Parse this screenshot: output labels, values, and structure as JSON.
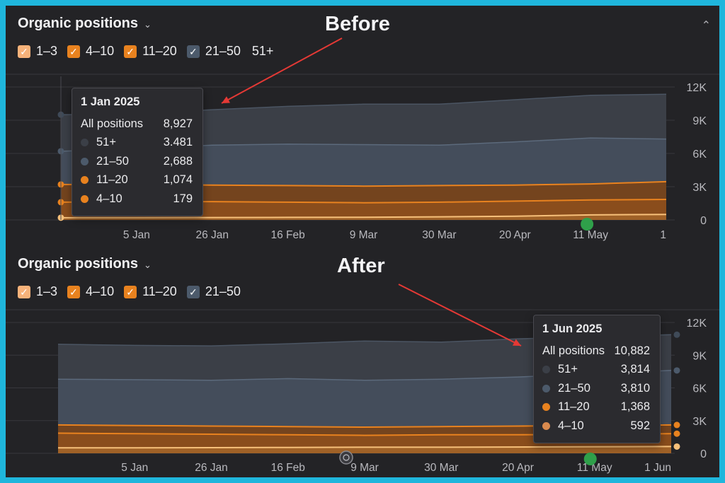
{
  "colors": {
    "pos_1_3": "#f7b27a",
    "pos_4_10": "#e8821f",
    "pos_11_20": "#e8821f",
    "pos_21_50": "#4c5a6b",
    "pos_51_plus": "#3b3f47",
    "arrow": "#e53935",
    "marker_green": "#2fa04a"
  },
  "panels": [
    {
      "id": "before",
      "title": "Organic positions",
      "annotation": "Before",
      "legend": [
        {
          "label": "1–3",
          "checked": true,
          "color": "#f7b27a"
        },
        {
          "label": "4–10",
          "checked": true,
          "color": "#e8821f"
        },
        {
          "label": "11–20",
          "checked": true,
          "color": "#e8821f"
        },
        {
          "label": "21–50",
          "checked": true,
          "color": "#4c5a6b"
        },
        {
          "label": "51+",
          "checked": false,
          "color": ""
        }
      ],
      "x_ticks": [
        "5 Jan",
        "26 Jan",
        "16 Feb",
        "9 Mar",
        "30 Mar",
        "20 Apr",
        "11 May",
        "1"
      ],
      "y_ticks": [
        "12K",
        "9K",
        "6K",
        "3K",
        "0"
      ],
      "tooltip": {
        "date": "1 Jan 2025",
        "total_label": "All positions",
        "total_value": "8,927",
        "rows": [
          {
            "label": "51+",
            "value": "3.481",
            "color": "#3b3f47"
          },
          {
            "label": "21–50",
            "value": "2,688",
            "color": "#4c5a6b"
          },
          {
            "label": "11–20",
            "value": "1,074",
            "color": "#e8821f"
          },
          {
            "label": "4–10",
            "value": "179",
            "color": "#e8821f"
          }
        ]
      }
    },
    {
      "id": "after",
      "title": "Organic positions",
      "annotation": "After",
      "legend": [
        {
          "label": "1–3",
          "checked": true,
          "color": "#f7b27a"
        },
        {
          "label": "4–10",
          "checked": true,
          "color": "#e8821f"
        },
        {
          "label": "11–20",
          "checked": true,
          "color": "#e8821f"
        },
        {
          "label": "21–50",
          "checked": true,
          "color": "#4c5a6b"
        }
      ],
      "x_ticks": [
        "5 Jan",
        "26 Jan",
        "16 Feb",
        "9 Mar",
        "30 Mar",
        "20 Apr",
        "11 May",
        "1 Jun"
      ],
      "y_ticks": [
        "12K",
        "9K",
        "6K",
        "3K",
        "0"
      ],
      "tooltip": {
        "date": "1 Jun 2025",
        "total_label": "All positions",
        "total_value": "10,882",
        "rows": [
          {
            "label": "51+",
            "value": "3,814",
            "color": "#3b3f47"
          },
          {
            "label": "21–50",
            "value": "3,810",
            "color": "#4c5a6b"
          },
          {
            "label": "11–20",
            "value": "1,368",
            "color": "#e8821f"
          },
          {
            "label": "4–10",
            "value": "592",
            "color": "#d98a4e"
          }
        ]
      }
    }
  ],
  "chart_data": [
    {
      "type": "area",
      "title": "Organic positions",
      "ylim": [
        0,
        12000
      ],
      "grid": true,
      "x": [
        "1 Jan",
        "5 Jan",
        "26 Jan",
        "16 Feb",
        "9 Mar",
        "30 Mar",
        "20 Apr",
        "11 May",
        "1 Jun"
      ],
      "series": [
        {
          "name": "51+",
          "values": [
            9500,
            9600,
            9950,
            10250,
            10450,
            10450,
            10850,
            11250,
            11350
          ]
        },
        {
          "name": "21–50",
          "values": [
            6200,
            6450,
            6750,
            6850,
            6800,
            6750,
            7050,
            7400,
            7300
          ]
        },
        {
          "name": "11–20",
          "values": [
            3200,
            3200,
            3150,
            3100,
            3050,
            3100,
            3150,
            3250,
            3450
          ]
        },
        {
          "name": "4–10",
          "values": [
            1600,
            1650,
            1650,
            1600,
            1550,
            1600,
            1700,
            1800,
            1850
          ]
        },
        {
          "name": "1–3",
          "values": [
            200,
            200,
            220,
            230,
            240,
            280,
            330,
            450,
            500
          ]
        }
      ]
    },
    {
      "type": "area",
      "title": "Organic positions",
      "ylim": [
        0,
        12000
      ],
      "grid": true,
      "x": [
        "1 Jan",
        "5 Jan",
        "26 Jan",
        "16 Feb",
        "9 Mar",
        "30 Mar",
        "20 Apr",
        "11 May",
        "1 Jun"
      ],
      "series": [
        {
          "name": "51+",
          "values": [
            10000,
            9900,
            9850,
            10050,
            10300,
            10200,
            10500,
            10700,
            10880
          ]
        },
        {
          "name": "21–50",
          "values": [
            6800,
            6750,
            6700,
            6850,
            6700,
            6800,
            7000,
            7300,
            7600
          ]
        },
        {
          "name": "11–20",
          "values": [
            2600,
            2550,
            2500,
            2450,
            2400,
            2450,
            2500,
            2550,
            2600
          ]
        },
        {
          "name": "4–10",
          "values": [
            1850,
            1800,
            1750,
            1700,
            1650,
            1700,
            1700,
            1750,
            1800
          ]
        },
        {
          "name": "1–3",
          "values": [
            500,
            500,
            520,
            540,
            560,
            560,
            580,
            600,
            620
          ]
        }
      ]
    }
  ]
}
